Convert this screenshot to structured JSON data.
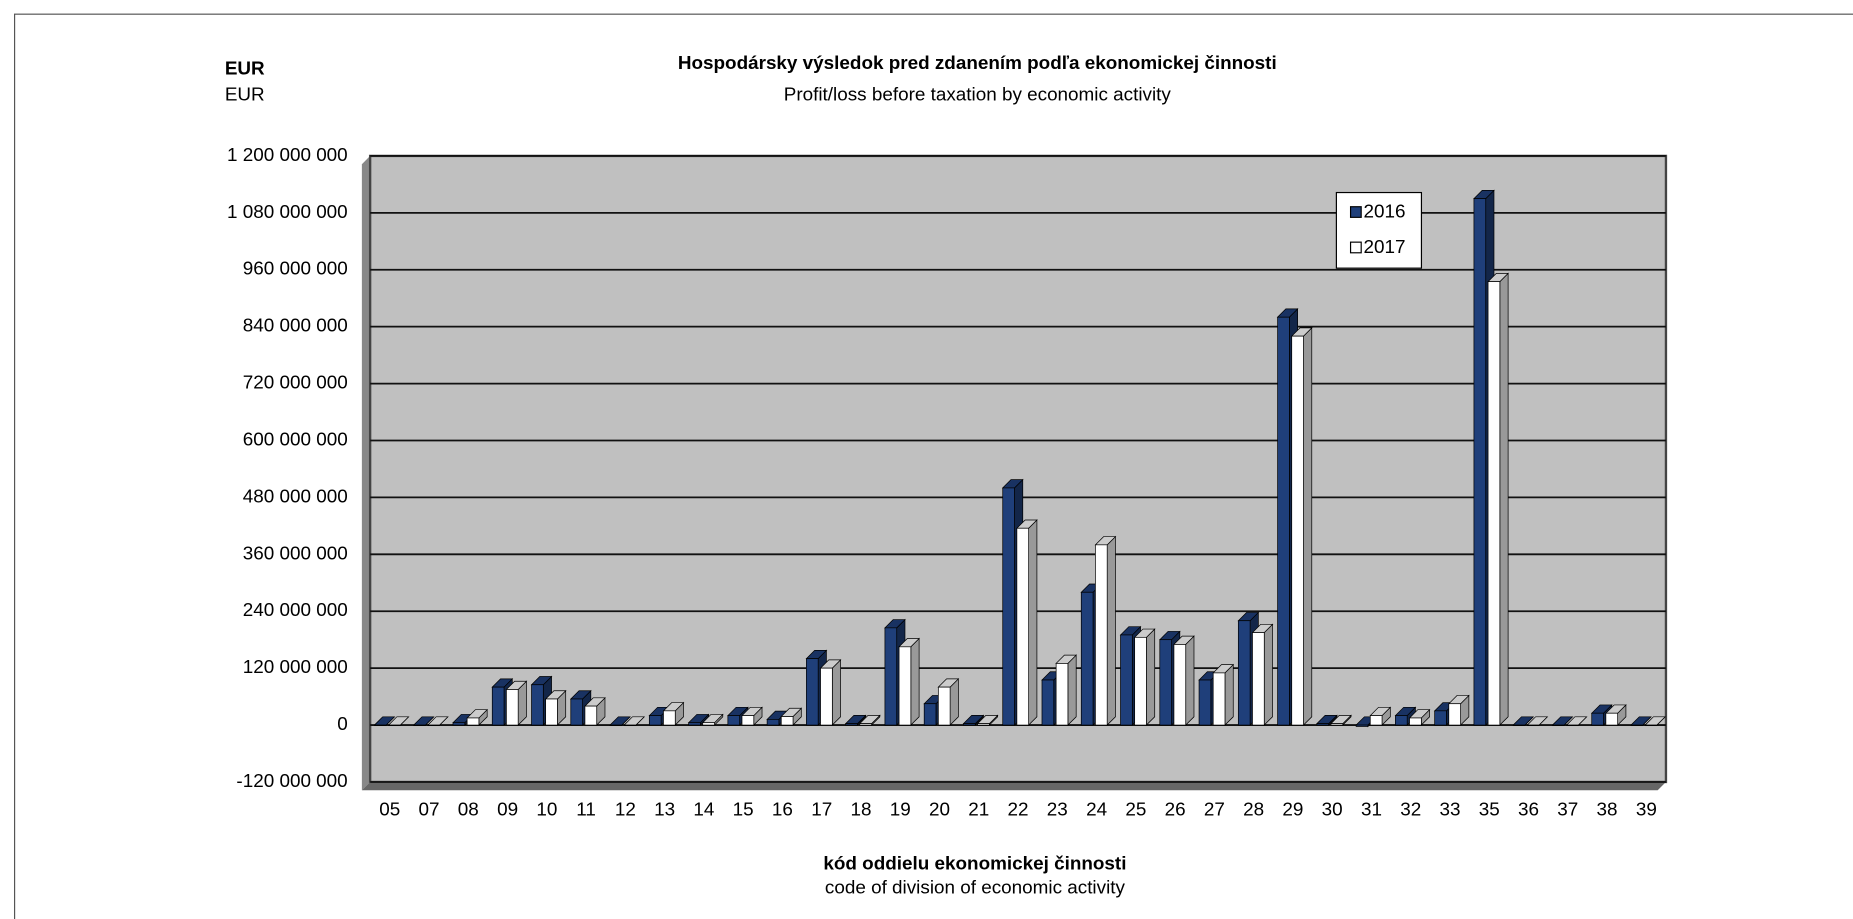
{
  "chart_data": {
    "type": "bar3d",
    "unit_label": "EUR",
    "unit_label_en": "EUR",
    "title": "Hospodársky výsledok pred zdanením podľa ekonomickej činnosti",
    "subtitle": "Profit/loss before taxation by economic activity",
    "x_label": "kód oddielu ekonomickej činnosti",
    "x_label_en": "code of division of economic activity",
    "categories": [
      "05",
      "07",
      "08",
      "09",
      "10",
      "11",
      "12",
      "13",
      "14",
      "15",
      "16",
      "17",
      "18",
      "19",
      "20",
      "21",
      "22",
      "23",
      "24",
      "25",
      "26",
      "27",
      "28",
      "29",
      "30",
      "31",
      "32",
      "33",
      "35",
      "36",
      "37",
      "38",
      "39"
    ],
    "series": [
      {
        "name": "2016",
        "color": "#1f3f7a",
        "values": [
          0,
          0,
          5000000,
          80000000,
          85000000,
          55000000,
          0,
          20000000,
          5000000,
          20000000,
          12000000,
          140000000,
          3000000,
          205000000,
          45000000,
          3000000,
          500000000,
          95000000,
          280000000,
          190000000,
          180000000,
          95000000,
          220000000,
          860000000,
          3000000,
          -3000000,
          20000000,
          30000000,
          1110000000,
          0,
          0,
          25000000,
          0
        ]
      },
      {
        "name": "2017",
        "color": "#ffffff",
        "values": [
          0,
          0,
          15000000,
          75000000,
          55000000,
          40000000,
          0,
          30000000,
          5000000,
          20000000,
          18000000,
          120000000,
          3000000,
          165000000,
          80000000,
          3000000,
          415000000,
          130000000,
          380000000,
          185000000,
          170000000,
          110000000,
          195000000,
          820000000,
          3000000,
          20000000,
          15000000,
          45000000,
          935000000,
          0,
          0,
          25000000,
          0
        ]
      }
    ],
    "ylim": [
      -120000000,
      1200000000
    ],
    "yticks": [
      {
        "value": -120000000,
        "label": "-120 000 000"
      },
      0,
      {
        "value": 120000000,
        "label": "120 000 000"
      },
      {
        "value": 240000000,
        "label": "240 000 000"
      },
      {
        "value": 360000000,
        "label": "360 000 000"
      },
      {
        "value": 480000000,
        "label": "480 000 000"
      },
      {
        "value": 600000000,
        "label": "600 000 000"
      },
      {
        "value": 720000000,
        "label": "720 000 000"
      },
      {
        "value": 840000000,
        "label": "840 000 000"
      },
      {
        "value": 960000000,
        "label": "960 000 000"
      },
      {
        "value": 1080000000,
        "label": "1 080 000 000"
      },
      {
        "value": 1200000000,
        "label": "1 200 000 000"
      }
    ],
    "grid": true,
    "legend": "upper right"
  }
}
